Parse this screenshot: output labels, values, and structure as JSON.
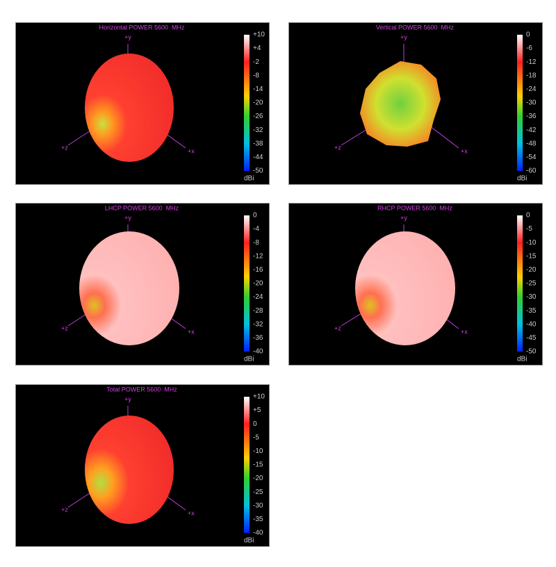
{
  "panels": [
    {
      "title": "Horizontal POWER 5600  MHz",
      "scale_ticks": [
        "+10",
        "+4",
        "-2",
        "-8",
        "-14",
        "-20",
        "-26",
        "-32",
        "-38",
        "-44",
        "-50"
      ],
      "unit": "dBi",
      "axes": [
        "+y",
        "+z",
        "+x"
      ]
    },
    {
      "title": "Vertical POWER 5600  MHz",
      "scale_ticks": [
        "0",
        "-6",
        "-12",
        "-18",
        "-24",
        "-30",
        "-36",
        "-42",
        "-48",
        "-54",
        "-60"
      ],
      "unit": "dBi",
      "axes": [
        "+y",
        "+z",
        "+x"
      ]
    },
    {
      "title": "LHCP POWER 5600  MHz",
      "scale_ticks": [
        "0",
        "-4",
        "-8",
        "-12",
        "-16",
        "-20",
        "-24",
        "-28",
        "-32",
        "-36",
        "-40"
      ],
      "unit": "dBi",
      "axes": [
        "+y",
        "+z",
        "+x"
      ]
    },
    {
      "title": "RHCP POWER 5600  MHz",
      "scale_ticks": [
        "0",
        "-5",
        "-10",
        "-15",
        "-20",
        "-25",
        "-30",
        "-35",
        "-40",
        "-45",
        "-50"
      ],
      "unit": "dBi",
      "axes": [
        "+y",
        "+z",
        "+x"
      ]
    },
    {
      "title": "Total POWER 5600  MHz",
      "scale_ticks": [
        "+10",
        "+5",
        "0",
        "-5",
        "-10",
        "-15",
        "-20",
        "-25",
        "-30",
        "-35",
        "-40"
      ],
      "unit": "dBi",
      "axes": [
        "+y",
        "+z",
        "+x"
      ]
    }
  ]
}
